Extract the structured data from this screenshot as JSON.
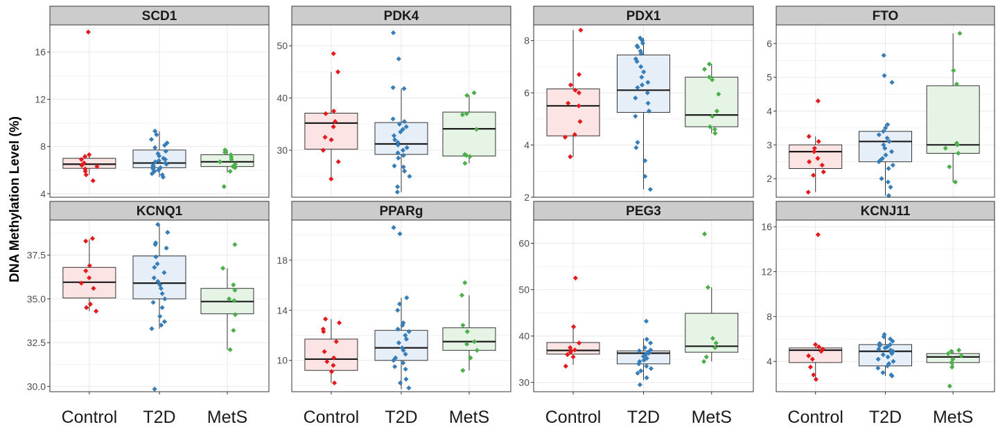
{
  "chart_data": {
    "type": "boxplot",
    "ylabel": "DNA Methylation Level (%)",
    "xlabel": "",
    "categories": [
      "Control",
      "T2D",
      "MetS"
    ],
    "colors": {
      "Control": "#e41a1c",
      "T2D": "#377eb8",
      "MetS": "#4daf4a",
      "Control_fill": "#fce4e4",
      "T2D_fill": "#e6eef8",
      "MetS_fill": "#e6f4e6",
      "strip_bg": "#cccccc",
      "grid": "#ebebeb"
    },
    "grid": true,
    "panels": [
      {
        "title": "SCD1",
        "ylim": [
          3.7,
          18.3
        ],
        "yticks": [
          4,
          8,
          12,
          16
        ],
        "ytick_labels": [
          "4",
          "8",
          "12",
          "16"
        ],
        "groups": [
          {
            "name": "Control",
            "min": 5.6,
            "q1": 6.15,
            "median": 6.5,
            "q3": 7.0,
            "max": 7.3,
            "points": [
              17.7,
              7.3,
              7.15,
              6.9,
              6.6,
              6.4,
              6.3,
              6.1,
              5.9,
              5.6,
              5.1
            ]
          },
          {
            "name": "T2D",
            "min": 5.4,
            "q1": 6.2,
            "median": 6.6,
            "q3": 7.7,
            "max": 9.3,
            "points": [
              9.3,
              9.0,
              8.6,
              8.3,
              8.1,
              7.9,
              7.6,
              7.4,
              7.2,
              7.0,
              6.9,
              6.8,
              6.7,
              6.6,
              6.5,
              6.4,
              6.3,
              6.2,
              6.1,
              6.0,
              5.9,
              5.7,
              5.6,
              5.4
            ]
          },
          {
            "name": "MetS",
            "min": 5.8,
            "q1": 6.3,
            "median": 6.7,
            "q3": 7.3,
            "max": 7.7,
            "points": [
              7.7,
              7.5,
              7.3,
              7.1,
              6.9,
              6.7,
              6.5,
              6.3,
              6.2,
              5.9,
              4.6
            ]
          }
        ]
      },
      {
        "title": "PDK4",
        "ylim": [
          21,
          54
        ],
        "yticks": [
          30,
          40,
          50
        ],
        "ytick_labels": [
          "30",
          "40",
          "50"
        ],
        "groups": [
          {
            "name": "Control",
            "min": 24.5,
            "q1": 30.2,
            "median": 35.2,
            "q3": 37.1,
            "max": 45.0,
            "points": [
              48.5,
              45.0,
              37.5,
              37.0,
              35.5,
              34.5,
              32.5,
              32.0,
              30.0,
              27.8,
              24.5
            ]
          },
          {
            "name": "T2D",
            "min": 22.0,
            "q1": 29.2,
            "median": 31.2,
            "q3": 35.3,
            "max": 41.8,
            "points": [
              52.5,
              47.5,
              42.0,
              41.8,
              36.0,
              35.5,
              35.0,
              34.5,
              34.0,
              33.5,
              32.8,
              32.0,
              31.5,
              31.0,
              30.5,
              30.0,
              29.5,
              29.0,
              28.5,
              27.0,
              26.8,
              26.0,
              25.0,
              23.0,
              22.0
            ]
          },
          {
            "name": "MetS",
            "min": 27.5,
            "q1": 28.9,
            "median": 34.1,
            "q3": 37.3,
            "max": 40.5,
            "points": [
              41.0,
              40.5,
              37.0,
              36.8,
              34.0,
              29.2,
              29.0,
              28.8,
              27.5
            ]
          }
        ]
      },
      {
        "title": "PDX1",
        "ylim": [
          2.0,
          8.6
        ],
        "yticks": [
          2,
          4,
          6,
          8
        ],
        "ytick_labels": [
          "2",
          "4",
          "6",
          "8"
        ],
        "groups": [
          {
            "name": "Control",
            "min": 3.55,
            "q1": 4.35,
            "median": 5.5,
            "q3": 6.15,
            "max": 8.4,
            "points": [
              8.4,
              6.7,
              6.3,
              6.1,
              6.0,
              5.6,
              5.5,
              4.9,
              4.4,
              4.3,
              3.55
            ]
          },
          {
            "name": "T2D",
            "min": 2.3,
            "q1": 5.25,
            "median": 6.1,
            "q3": 7.45,
            "max": 8.1,
            "points": [
              8.1,
              8.0,
              7.9,
              7.8,
              7.75,
              7.6,
              7.5,
              7.3,
              7.2,
              7.0,
              6.8,
              6.6,
              6.4,
              6.3,
              6.2,
              6.0,
              5.8,
              5.6,
              5.3,
              5.1,
              4.1,
              3.9,
              3.4,
              2.8,
              2.3
            ]
          },
          {
            "name": "MetS",
            "min": 4.45,
            "q1": 4.7,
            "median": 5.15,
            "q3": 6.6,
            "max": 7.1,
            "points": [
              7.1,
              6.9,
              6.6,
              6.5,
              5.95,
              5.3,
              5.1,
              4.7,
              4.6,
              4.45
            ]
          }
        ]
      },
      {
        "title": "FTO",
        "ylim": [
          1.45,
          6.55
        ],
        "yticks": [
          2,
          3,
          4,
          5,
          6
        ],
        "ytick_labels": [
          "2",
          "3",
          "4",
          "5",
          "6"
        ],
        "groups": [
          {
            "name": "Control",
            "min": 1.6,
            "q1": 2.3,
            "median": 2.8,
            "q3": 3.0,
            "max": 3.25,
            "points": [
              4.3,
              3.25,
              3.1,
              2.9,
              2.8,
              2.6,
              2.5,
              2.4,
              2.2,
              2.1,
              1.6
            ]
          },
          {
            "name": "T2D",
            "min": 1.5,
            "q1": 2.5,
            "median": 3.1,
            "q3": 3.4,
            "max": 3.6,
            "points": [
              5.65,
              5.05,
              4.85,
              3.6,
              3.5,
              3.4,
              3.3,
              3.2,
              3.1,
              3.0,
              2.9,
              2.8,
              2.7,
              2.6,
              2.55,
              2.5,
              2.4,
              2.3,
              2.0,
              1.9,
              1.75,
              1.5
            ]
          },
          {
            "name": "MetS",
            "min": 1.9,
            "q1": 2.75,
            "median": 3.0,
            "q3": 4.75,
            "max": 6.3,
            "points": [
              6.3,
              5.2,
              4.8,
              3.05,
              3.0,
              2.9,
              2.75,
              2.35,
              1.9
            ]
          }
        ]
      },
      {
        "title": "KCNQ1",
        "ylim": [
          29.7,
          39.5
        ],
        "yticks": [
          30.0,
          32.5,
          35.0,
          37.5
        ],
        "ytick_labels": [
          "30.0",
          "32.5",
          "35.0",
          "37.5"
        ],
        "groups": [
          {
            "name": "Control",
            "min": 34.3,
            "q1": 35.05,
            "median": 35.95,
            "q3": 36.8,
            "max": 38.4,
            "points": [
              38.45,
              38.3,
              36.9,
              36.6,
              36.2,
              35.9,
              35.6,
              34.7,
              34.5,
              34.3
            ]
          },
          {
            "name": "T2D",
            "min": 33.3,
            "q1": 35.0,
            "median": 35.9,
            "q3": 37.45,
            "max": 39.2,
            "points": [
              39.25,
              38.8,
              38.2,
              38.1,
              37.9,
              37.4,
              37.0,
              36.8,
              36.5,
              36.2,
              36.0,
              35.8,
              35.6,
              35.3,
              35.0,
              34.8,
              34.5,
              34.0,
              33.7,
              33.5,
              33.3,
              29.85
            ]
          },
          {
            "name": "MetS",
            "min": 32.1,
            "q1": 34.15,
            "median": 34.85,
            "q3": 35.6,
            "max": 36.75,
            "points": [
              38.1,
              36.75,
              35.8,
              35.5,
              35.0,
              34.9,
              34.1,
              33.2,
              32.1
            ]
          }
        ]
      },
      {
        "title": "PPARg",
        "ylim": [
          7.5,
          21.2
        ],
        "yticks": [
          10,
          14,
          18
        ],
        "ytick_labels": [
          "10",
          "14",
          "18"
        ],
        "groups": [
          {
            "name": "Control",
            "min": 8.2,
            "q1": 9.2,
            "median": 10.1,
            "q3": 11.7,
            "max": 13.3,
            "points": [
              13.3,
              13.0,
              12.5,
              12.3,
              11.5,
              10.7,
              10.2,
              9.9,
              9.6,
              9.1,
              8.2
            ]
          },
          {
            "name": "T2D",
            "min": 7.7,
            "q1": 10.0,
            "median": 11.0,
            "q3": 12.4,
            "max": 15.0,
            "points": [
              20.6,
              20.1,
              15.0,
              14.5,
              14.0,
              13.0,
              12.8,
              12.5,
              12.3,
              12.0,
              11.7,
              11.4,
              11.0,
              10.8,
              10.5,
              10.2,
              10.0,
              9.8,
              9.5,
              9.3,
              8.5,
              8.2,
              7.8
            ]
          },
          {
            "name": "MetS",
            "min": 9.2,
            "q1": 10.8,
            "median": 11.5,
            "q3": 12.6,
            "max": 15.2,
            "points": [
              16.2,
              15.2,
              12.8,
              12.3,
              11.5,
              11.3,
              10.8,
              10.2,
              9.2
            ]
          }
        ]
      },
      {
        "title": "PEG3",
        "ylim": [
          28,
          65
        ],
        "yticks": [
          30,
          40,
          50,
          60
        ],
        "ytick_labels": [
          "30",
          "40",
          "50",
          "60"
        ],
        "groups": [
          {
            "name": "Control",
            "min": 33.8,
            "q1": 36.1,
            "median": 36.9,
            "q3": 38.6,
            "max": 42.0,
            "points": [
              52.5,
              42.0,
              38.5,
              37.5,
              37.0,
              36.8,
              36.5,
              36.0,
              35.5,
              33.5
            ]
          },
          {
            "name": "T2D",
            "min": 30.5,
            "q1": 34.0,
            "median": 36.3,
            "q3": 36.8,
            "max": 39.5,
            "points": [
              43.2,
              39.3,
              38.5,
              37.5,
              37.0,
              36.8,
              36.5,
              36.3,
              36.0,
              35.6,
              35.2,
              34.8,
              34.5,
              34.0,
              33.5,
              33.0,
              32.5,
              32.0,
              31.0,
              29.5
            ]
          },
          {
            "name": "MetS",
            "min": 34.5,
            "q1": 36.5,
            "median": 37.8,
            "q3": 44.9,
            "max": 50.5,
            "points": [
              62.0,
              50.5,
              39.5,
              38.5,
              37.5,
              35.5,
              34.5
            ]
          }
        ]
      },
      {
        "title": "KCNJ11",
        "ylim": [
          1.3,
          16.6
        ],
        "yticks": [
          4,
          8,
          12,
          16
        ],
        "ytick_labels": [
          "4",
          "8",
          "12",
          "16"
        ],
        "groups": [
          {
            "name": "Control",
            "min": 2.5,
            "q1": 3.9,
            "median": 5.0,
            "q3": 5.2,
            "max": 5.5,
            "points": [
              15.3,
              5.5,
              5.3,
              5.1,
              4.9,
              4.5,
              4.2,
              3.5,
              2.8,
              2.4
            ]
          },
          {
            "name": "T2D",
            "min": 2.7,
            "q1": 3.6,
            "median": 4.9,
            "q3": 5.5,
            "max": 6.4,
            "points": [
              6.4,
              6.2,
              6.0,
              5.8,
              5.6,
              5.5,
              5.4,
              5.3,
              5.2,
              5.1,
              5.0,
              4.9,
              4.8,
              4.7,
              4.6,
              4.4,
              4.2,
              4.0,
              3.8,
              3.6,
              3.4,
              3.0,
              2.8,
              2.7
            ]
          },
          {
            "name": "MetS",
            "min": 3.4,
            "q1": 3.9,
            "median": 4.4,
            "q3": 4.7,
            "max": 5.0,
            "points": [
              5.0,
              4.9,
              4.7,
              4.5,
              4.2,
              3.9,
              3.5,
              1.8
            ]
          }
        ]
      }
    ]
  }
}
